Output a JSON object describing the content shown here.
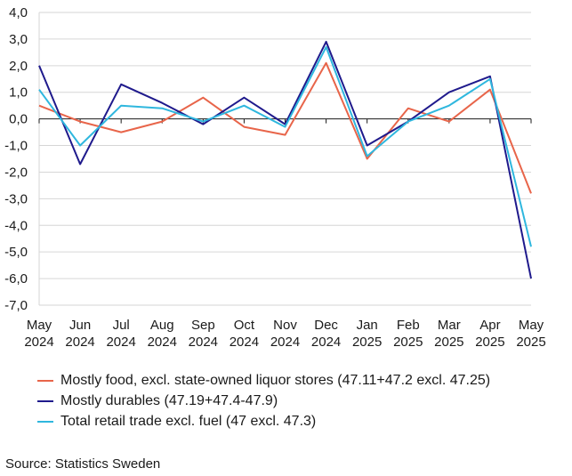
{
  "chart_data": {
    "type": "line",
    "categories": [
      [
        "May",
        "2024"
      ],
      [
        "Jun",
        "2024"
      ],
      [
        "Jul",
        "2024"
      ],
      [
        "Aug",
        "2024"
      ],
      [
        "Sep",
        "2024"
      ],
      [
        "Oct",
        "2024"
      ],
      [
        "Nov",
        "2024"
      ],
      [
        "Dec",
        "2024"
      ],
      [
        "Jan",
        "2025"
      ],
      [
        "Feb",
        "2025"
      ],
      [
        "Mar",
        "2025"
      ],
      [
        "Apr",
        "2025"
      ],
      [
        "May",
        "2025"
      ]
    ],
    "ylim": [
      -7,
      4
    ],
    "yticks": [
      "4,0",
      "3,0",
      "2,0",
      "1,0",
      "0,0",
      "-1,0",
      "-2,0",
      "-3,0",
      "-4,0",
      "-5,0",
      "-6,0",
      "-7,0"
    ],
    "grid": true,
    "series": [
      {
        "name": "Mostly food, excl. state-owned liquor stores (47.11+47.2 excl. 47.25)",
        "color": "#e8654a",
        "values": [
          0.5,
          -0.1,
          -0.5,
          -0.1,
          0.8,
          -0.3,
          -0.6,
          2.1,
          -1.5,
          0.4,
          -0.1,
          1.1,
          -2.8
        ]
      },
      {
        "name": "Mostly durables (47.19+47.4-47.9)",
        "color": "#1f1a8c",
        "values": [
          2.0,
          -1.7,
          1.3,
          0.6,
          -0.2,
          0.8,
          -0.2,
          2.9,
          -1.0,
          -0.1,
          1.0,
          1.6,
          -6.0
        ]
      },
      {
        "name": "Total retail trade excl. fuel (47 excl. 47.3)",
        "color": "#2fb7de",
        "values": [
          1.1,
          -1.0,
          0.5,
          0.4,
          -0.1,
          0.5,
          -0.3,
          2.7,
          -1.4,
          -0.1,
          0.5,
          1.5,
          -4.8
        ]
      }
    ]
  },
  "source": "Source: Statistics Sweden"
}
